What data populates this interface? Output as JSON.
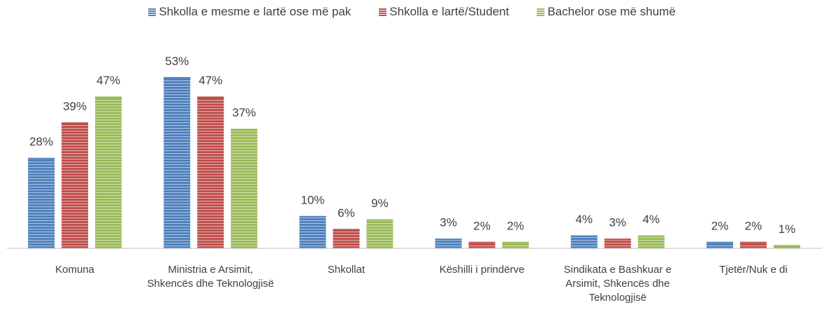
{
  "chart_data": {
    "type": "bar",
    "categories": [
      "Komuna",
      "Ministria e Arsimit, Shkencës dhe Teknologjisë",
      "Shkollat",
      "Këshilli i prindërve",
      "Sindikata e Bashkuar e Arsimit, Shkencës dhe Teknologjisë",
      "Tjetër/Nuk e di"
    ],
    "series": [
      {
        "name": "Shkolla e mesme e lartë ose më pak",
        "color": "#4f81bd",
        "values": [
          28,
          53,
          10,
          3,
          4,
          2
        ],
        "value_labels": [
          "28%",
          "53%",
          "10%",
          "3%",
          "4%",
          "2%"
        ]
      },
      {
        "name": "Shkolla e lartë/Student",
        "color": "#c0504d",
        "values": [
          39,
          47,
          6,
          2,
          3,
          2
        ],
        "value_labels": [
          "39%",
          "47%",
          "6%",
          "2%",
          "3%",
          "2%"
        ]
      },
      {
        "name": "Bachelor ose më shumë",
        "color": "#9bbb59",
        "values": [
          47,
          37,
          9,
          2,
          4,
          1
        ],
        "value_labels": [
          "47%",
          "37%",
          "9%",
          "2%",
          "4%",
          "1%"
        ]
      }
    ],
    "ylim": [
      0,
      60
    ],
    "legend": "top"
  }
}
